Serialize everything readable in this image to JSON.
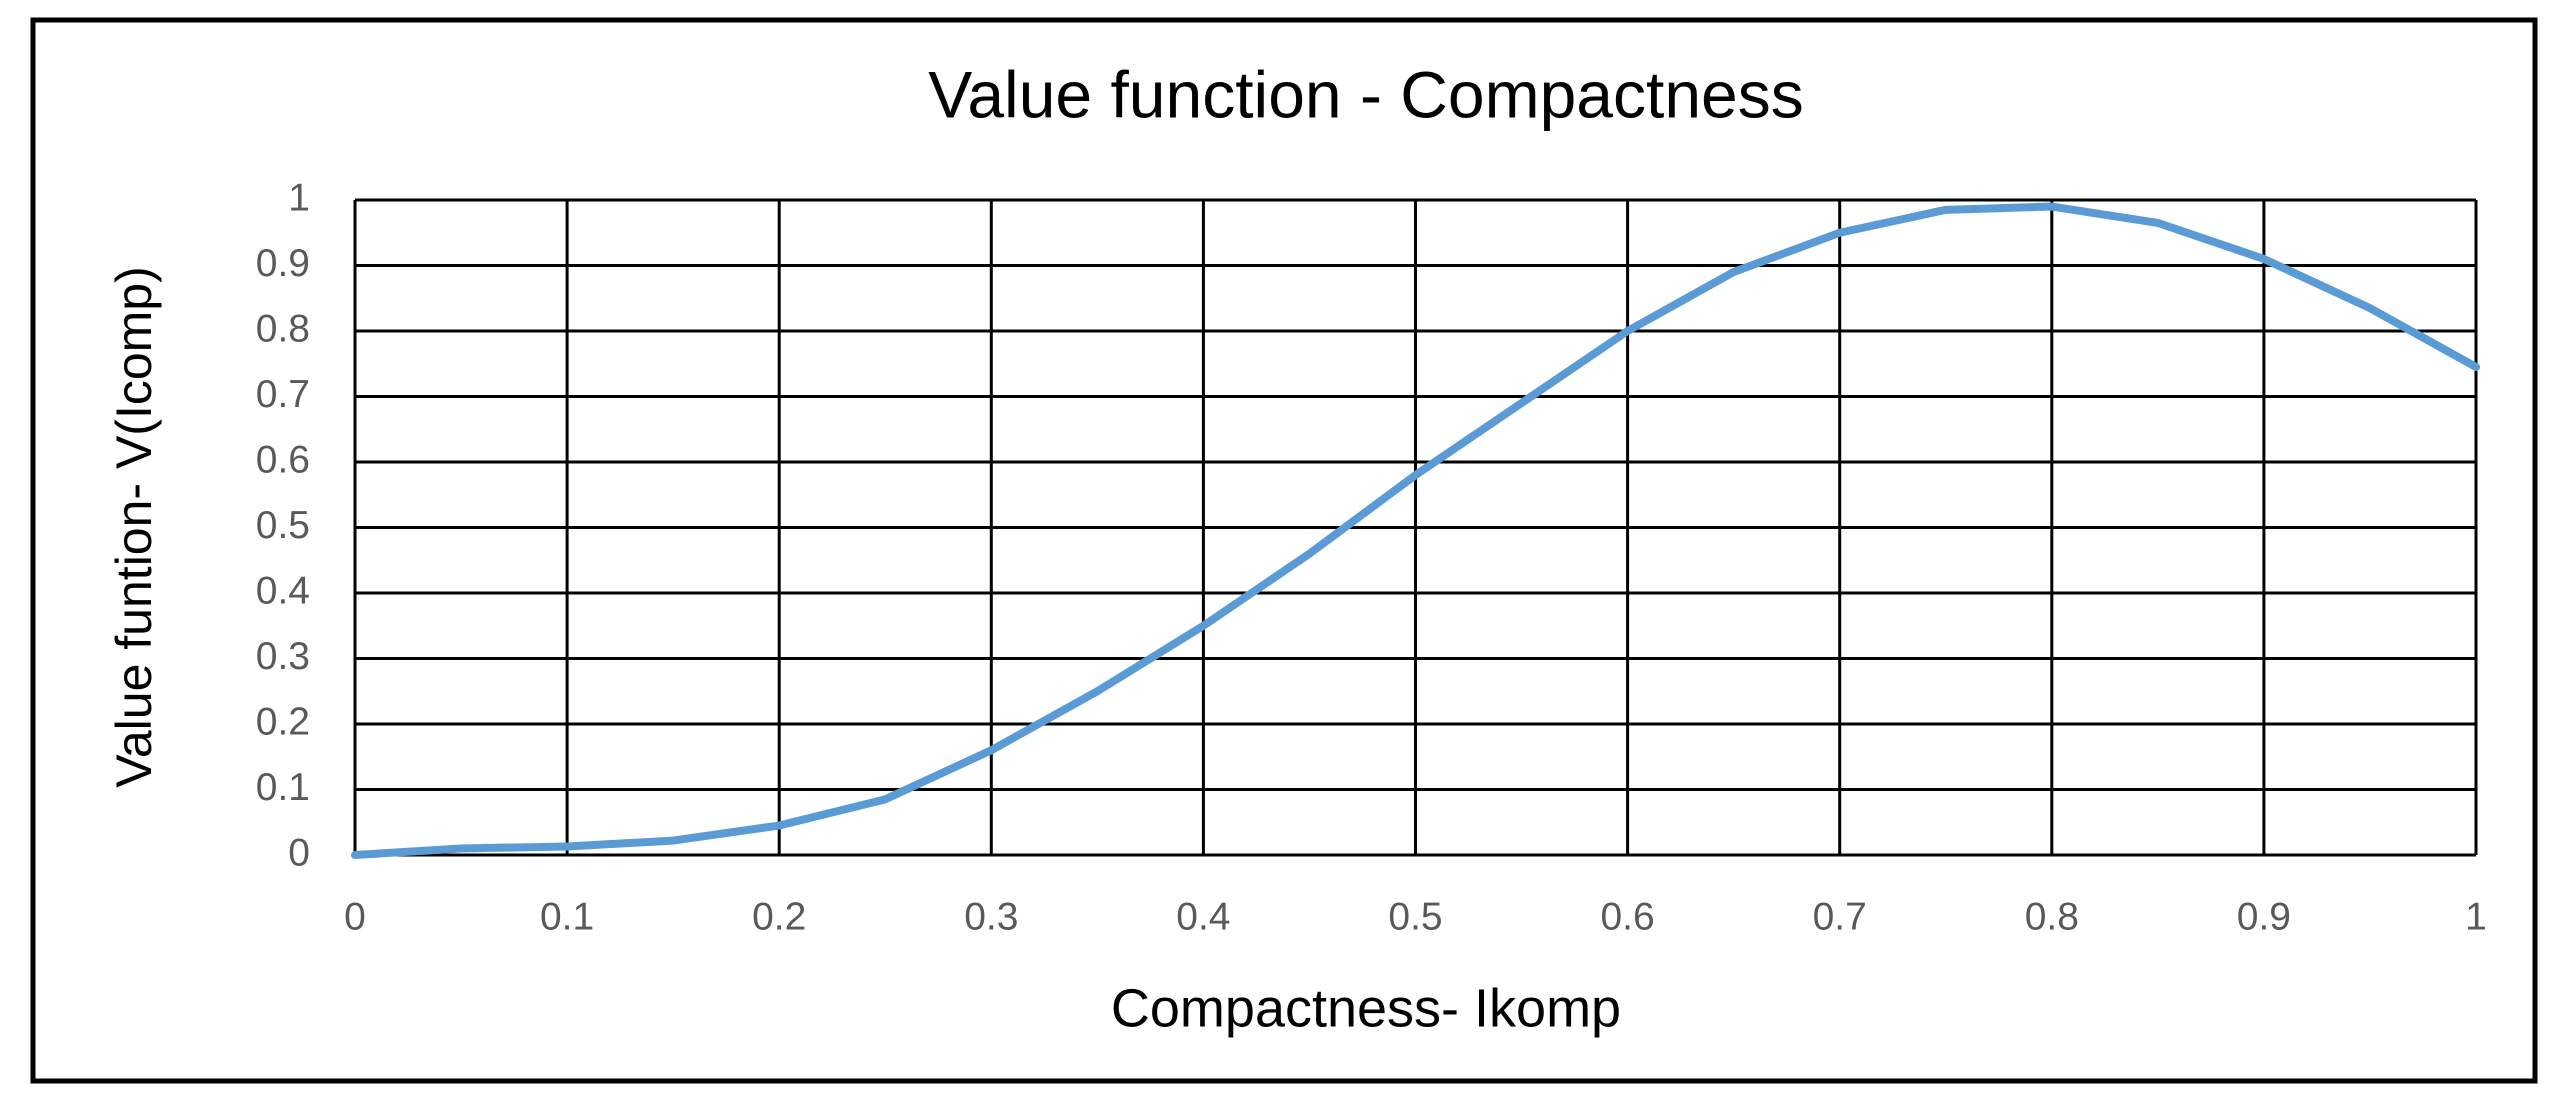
{
  "chart_data": {
    "type": "line",
    "title": "Value function - Compactness",
    "x_label": "Compactness- Ikomp",
    "y_label": "Value funtion- V(Icomp)",
    "x": [
      0,
      0.05,
      0.1,
      0.15,
      0.2,
      0.25,
      0.3,
      0.35,
      0.4,
      0.45,
      0.5,
      0.55,
      0.6,
      0.65,
      0.7,
      0.75,
      0.8,
      0.85,
      0.9,
      0.95,
      1
    ],
    "series": [
      {
        "color": "#5b9bd5",
        "values": [
          0,
          0.01,
          0.013,
          0.022,
          0.045,
          0.085,
          0.16,
          0.25,
          0.35,
          0.46,
          0.58,
          0.69,
          0.8,
          0.89,
          0.95,
          0.985,
          0.99,
          0.965,
          0.91,
          0.835,
          0.745
        ]
      }
    ],
    "xlim": [
      0,
      1
    ],
    "xticks": [
      0,
      0.1,
      0.2,
      0.3,
      0.4,
      0.5,
      0.6,
      0.7,
      0.8,
      0.9,
      1
    ],
    "ylim": [
      0,
      1
    ],
    "yticks": [
      0,
      0.1,
      0.2,
      0.3,
      0.4,
      0.5,
      0.6,
      0.7,
      0.8,
      0.9,
      1
    ],
    "grid": true
  }
}
